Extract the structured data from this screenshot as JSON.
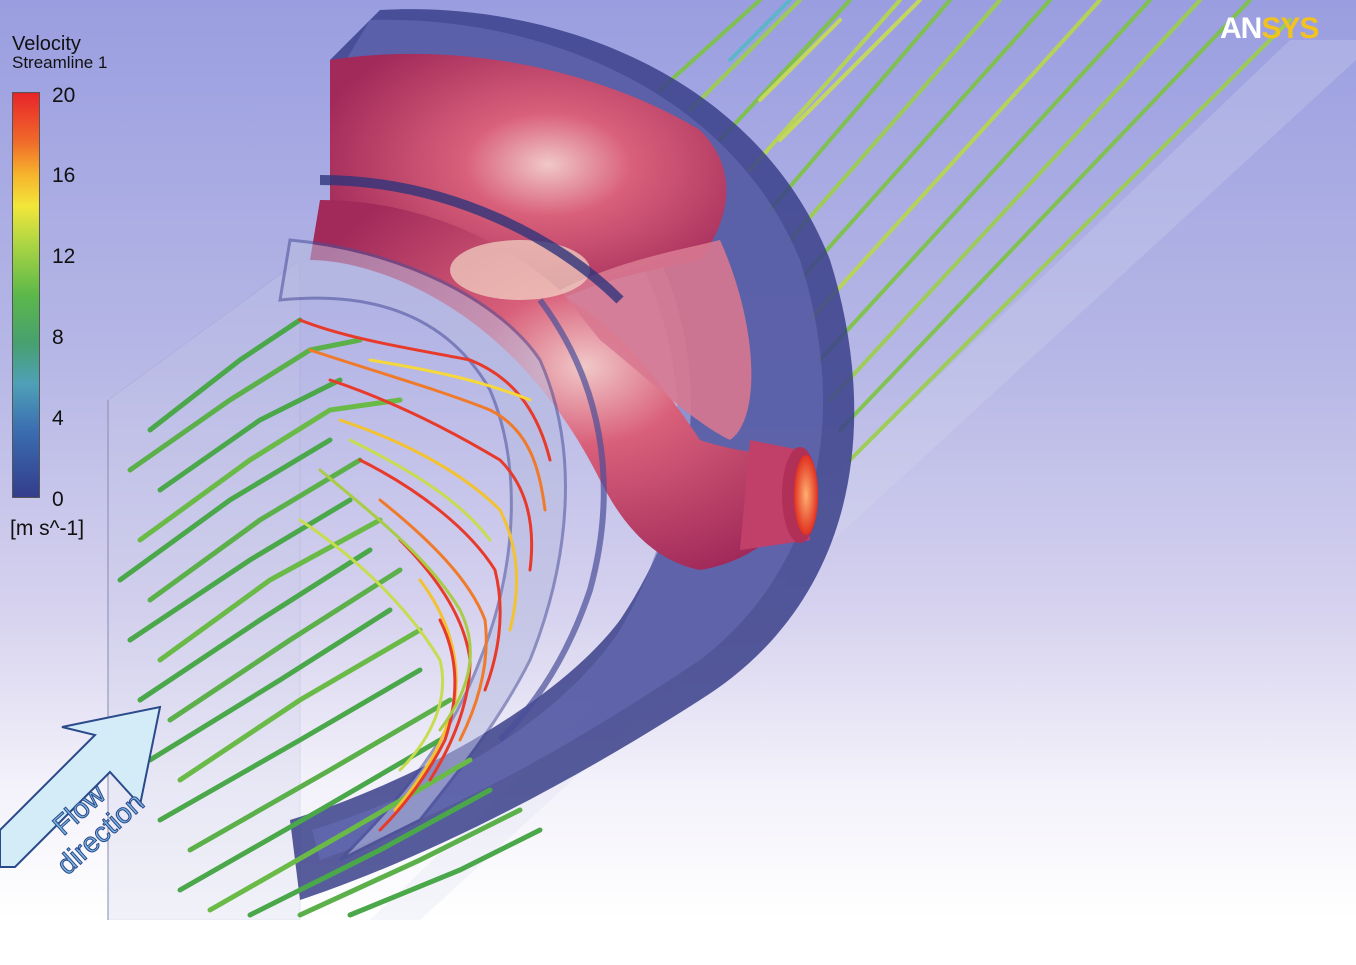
{
  "legend": {
    "title": "Velocity",
    "variable": "Streamline 1",
    "ticks": [
      "20",
      "16",
      "12",
      "8",
      "4",
      "0"
    ],
    "unit": "[m s^-1]"
  },
  "logo": {
    "part1": "AN",
    "part2": "SYS"
  },
  "annotation": {
    "line1": "Flow",
    "line2": "direction"
  },
  "colors": {
    "high": "#e8242a",
    "mid_high": "#f2e63a",
    "mid": "#5cb84a",
    "low": "#333d8c",
    "body": "#c0406a",
    "shell": "#3a3f8a"
  }
}
